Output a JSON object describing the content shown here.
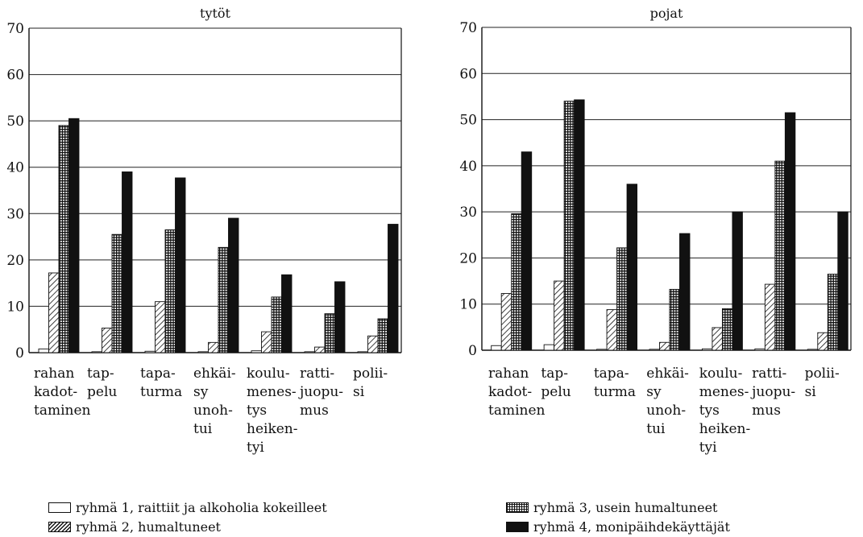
{
  "chart_data": [
    {
      "type": "bar",
      "title": "tytöt",
      "categories": [
        "rahan kadot- taminen",
        "tap- pelu",
        "tapa- turma",
        "ehkäi- sy unoh- tui",
        "koulu- menes- tys heiken- tyi",
        "ratti- juopu- mus",
        "polii- si"
      ],
      "category_lines": [
        [
          "rahan",
          "kadot-",
          "taminen"
        ],
        [
          "tap-",
          "pelu"
        ],
        [
          "tapa-",
          "turma"
        ],
        [
          "ehkäi-",
          "sy",
          "unoh-",
          "tui"
        ],
        [
          "koulu-",
          "menes-",
          "tys",
          "heiken-",
          "tyi"
        ],
        [
          "ratti-",
          "juopu-",
          "mus"
        ],
        [
          "polii-",
          "si"
        ]
      ],
      "ylim": [
        0,
        70
      ],
      "yticks": [
        0,
        10,
        20,
        30,
        40,
        50,
        60,
        70
      ],
      "grid": true,
      "series": [
        {
          "name": "ryhmä 1, raittiit ja alkoholia kokeilleet",
          "pattern": "empty",
          "values": [
            0.8,
            0.2,
            0.3,
            0.2,
            0.4,
            0.2,
            0.2
          ]
        },
        {
          "name": "ryhmä 2, humaltuneet",
          "pattern": "hatch",
          "values": [
            17.2,
            5.3,
            11.0,
            2.2,
            4.5,
            1.2,
            3.6
          ]
        },
        {
          "name": "ryhmä 3, usein humaltuneet",
          "pattern": "grid",
          "values": [
            49.0,
            25.5,
            26.5,
            22.7,
            12.0,
            8.4,
            7.3
          ]
        },
        {
          "name": "ryhmä 4, monipäihdekäyttäjät",
          "pattern": "solid",
          "values": [
            50.5,
            39.0,
            37.7,
            29.0,
            16.8,
            15.3,
            27.7
          ]
        }
      ]
    },
    {
      "type": "bar",
      "title": "pojat",
      "categories": [
        "rahan kadot- taminen",
        "tap- pelu",
        "tapa- turma",
        "ehkäi- sy unoh- tui",
        "koulu- menes- tys heiken- tyi",
        "ratti- juopu- mus",
        "polii- si"
      ],
      "category_lines": [
        [
          "rahan",
          "kadot-",
          "taminen"
        ],
        [
          "tap-",
          "pelu"
        ],
        [
          "tapa-",
          "turma"
        ],
        [
          "ehkäi-",
          "sy",
          "unoh-",
          "tui"
        ],
        [
          "koulu-",
          "menes-",
          "tys",
          "heiken-",
          "tyi"
        ],
        [
          "ratti-",
          "juopu-",
          "mus"
        ],
        [
          "polii-",
          "si"
        ]
      ],
      "ylim": [
        0,
        70
      ],
      "yticks": [
        0,
        10,
        20,
        30,
        40,
        50,
        60,
        70
      ],
      "grid": true,
      "series": [
        {
          "name": "ryhmä 1, raittiit ja alkoholia kokeilleet",
          "pattern": "empty",
          "values": [
            1.0,
            1.2,
            0.2,
            0.2,
            0.3,
            0.3,
            0.2
          ]
        },
        {
          "name": "ryhmä 2, humaltuneet",
          "pattern": "hatch",
          "values": [
            12.3,
            15.0,
            8.8,
            1.7,
            4.9,
            14.3,
            3.8
          ]
        },
        {
          "name": "ryhmä 3, usein humaltuneet",
          "pattern": "grid",
          "values": [
            29.6,
            54.0,
            22.2,
            13.2,
            9.0,
            41.0,
            16.5
          ]
        },
        {
          "name": "ryhmä 4, monipäihdekäyttäjät",
          "pattern": "solid",
          "values": [
            43.0,
            54.3,
            36.0,
            25.3,
            30.0,
            51.5,
            30.0
          ]
        }
      ]
    }
  ],
  "legend": {
    "items": [
      {
        "label": "ryhmä 1, raittiit ja alkoholia kokeilleet",
        "pattern": "empty"
      },
      {
        "label": "ryhmä 2, humaltuneet",
        "pattern": "hatch"
      },
      {
        "label": "ryhmä 3, usein humaltuneet",
        "pattern": "grid"
      },
      {
        "label": "ryhmä 4, monipäihdekäyttäjät",
        "pattern": "solid"
      }
    ]
  }
}
